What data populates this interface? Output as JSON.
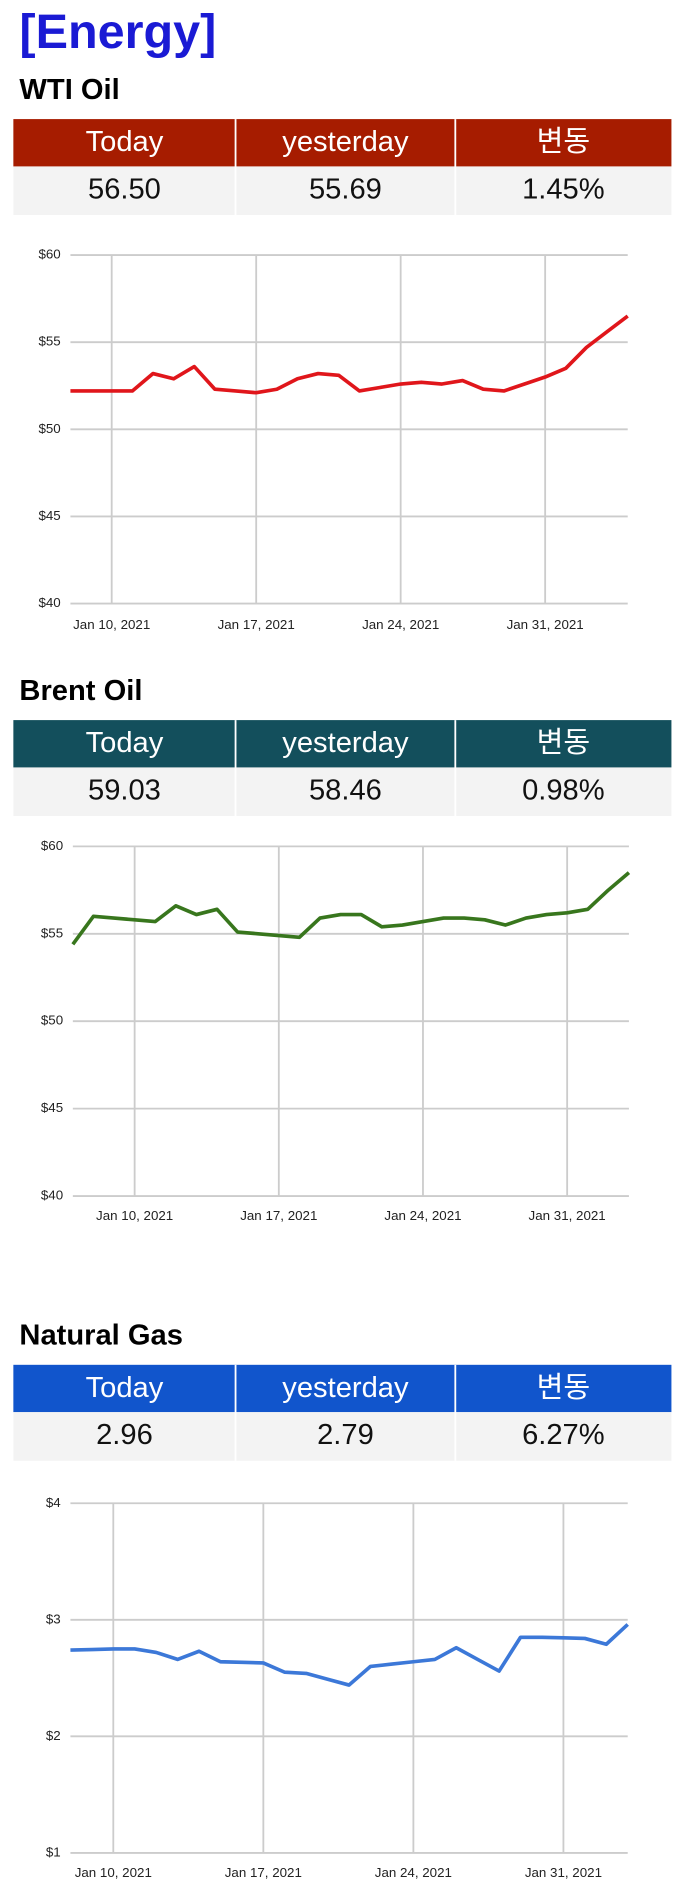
{
  "header": {
    "title": "[Energy]"
  },
  "sections": [
    {
      "title": "WTI Oil",
      "header_color": "#a61c00",
      "table": {
        "header": [
          "Today",
          "yesterday",
          "변동"
        ],
        "rows": [
          [
            "56.50",
            "55.69",
            "1.45%"
          ]
        ]
      }
    },
    {
      "title": "Brent Oil",
      "header_color": "#134f5c",
      "table": {
        "header": [
          "Today",
          "yesterday",
          "변동"
        ],
        "rows": [
          [
            "59.03",
            "58.46",
            "0.98%"
          ]
        ]
      }
    },
    {
      "title": "Natural Gas",
      "header_color": "#1155cc",
      "table": {
        "header": [
          "Today",
          "yesterday",
          "변동"
        ],
        "rows": [
          [
            "2.96",
            "2.79",
            "6.27%"
          ]
        ]
      }
    }
  ],
  "chart_data": [
    {
      "type": "line",
      "color": "#e0161b",
      "x": [
        "2021-01-08",
        "2021-01-09",
        "2021-01-10",
        "2021-01-11",
        "2021-01-12",
        "2021-01-13",
        "2021-01-14",
        "2021-01-15",
        "2021-01-16",
        "2021-01-17",
        "2021-01-18",
        "2021-01-19",
        "2021-01-20",
        "2021-01-21",
        "2021-01-22",
        "2021-01-23",
        "2021-01-24",
        "2021-01-25",
        "2021-01-26",
        "2021-01-27",
        "2021-01-28",
        "2021-01-29",
        "2021-01-30",
        "2021-01-31",
        "2021-02-01",
        "2021-02-02",
        "2021-02-03",
        "2021-02-04"
      ],
      "values": [
        52.2,
        52.2,
        52.2,
        52.2,
        53.2,
        52.9,
        53.6,
        52.3,
        52.2,
        52.1,
        52.3,
        52.9,
        53.2,
        53.1,
        52.2,
        52.4,
        52.6,
        52.7,
        52.6,
        52.8,
        52.3,
        52.2,
        52.6,
        53.0,
        53.5,
        54.7,
        55.6,
        56.5
      ],
      "xlim": [
        "2021-01-08",
        "2021-02-04"
      ],
      "xticks": [
        {
          "value": "2021-01-10",
          "label": "Jan 10, 2021"
        },
        {
          "value": "2021-01-17",
          "label": "Jan 17, 2021"
        },
        {
          "value": "2021-01-24",
          "label": "Jan 24, 2021"
        },
        {
          "value": "2021-01-31",
          "label": "Jan 31, 2021"
        }
      ],
      "ylim": [
        40,
        60
      ],
      "yticks": [
        {
          "value": 40,
          "label": "$40"
        },
        {
          "value": 45,
          "label": "$45"
        },
        {
          "value": 50,
          "label": "$50"
        },
        {
          "value": 55,
          "label": "$55"
        },
        {
          "value": 60,
          "label": "$60"
        }
      ],
      "grid": true
    },
    {
      "type": "line",
      "color": "#38761d",
      "x": [
        "2021-01-07",
        "2021-01-08",
        "2021-01-09",
        "2021-01-10",
        "2021-01-11",
        "2021-01-12",
        "2021-01-13",
        "2021-01-14",
        "2021-01-15",
        "2021-01-16",
        "2021-01-17",
        "2021-01-18",
        "2021-01-19",
        "2021-01-20",
        "2021-01-21",
        "2021-01-22",
        "2021-01-23",
        "2021-01-24",
        "2021-01-25",
        "2021-01-26",
        "2021-01-27",
        "2021-01-28",
        "2021-01-29",
        "2021-01-30",
        "2021-01-31",
        "2021-02-01",
        "2021-02-02",
        "2021-02-03"
      ],
      "values": [
        54.4,
        56.0,
        55.9,
        55.8,
        55.7,
        56.6,
        56.1,
        56.4,
        55.1,
        55.0,
        54.9,
        54.8,
        55.9,
        56.1,
        56.1,
        55.4,
        55.5,
        55.7,
        55.9,
        55.9,
        55.8,
        55.5,
        55.9,
        56.1,
        56.2,
        56.4,
        57.5,
        58.5
      ],
      "xlim": [
        "2021-01-07",
        "2021-02-03"
      ],
      "xticks": [
        {
          "value": "2021-01-10",
          "label": "Jan 10, 2021"
        },
        {
          "value": "2021-01-17",
          "label": "Jan 17, 2021"
        },
        {
          "value": "2021-01-24",
          "label": "Jan 24, 2021"
        },
        {
          "value": "2021-01-31",
          "label": "Jan 31, 2021"
        }
      ],
      "ylim": [
        40,
        60
      ],
      "yticks": [
        {
          "value": 40,
          "label": "$40"
        },
        {
          "value": 45,
          "label": "$45"
        },
        {
          "value": 50,
          "label": "$50"
        },
        {
          "value": 55,
          "label": "$55"
        },
        {
          "value": 60,
          "label": "$60"
        }
      ],
      "grid": true
    },
    {
      "type": "line",
      "color": "#3c78d8",
      "x": [
        "2021-01-08",
        "2021-01-09",
        "2021-01-10",
        "2021-01-11",
        "2021-01-12",
        "2021-01-13",
        "2021-01-14",
        "2021-01-15",
        "2021-01-16",
        "2021-01-17",
        "2021-01-18",
        "2021-01-19",
        "2021-01-20",
        "2021-01-21",
        "2021-01-22",
        "2021-01-23",
        "2021-01-24",
        "2021-01-25",
        "2021-01-26",
        "2021-01-27",
        "2021-01-28",
        "2021-01-29",
        "2021-01-30",
        "2021-01-31",
        "2021-02-01",
        "2021-02-02",
        "2021-02-03"
      ],
      "values": [
        2.74,
        2.745,
        2.75,
        2.75,
        2.72,
        2.66,
        2.73,
        2.64,
        2.635,
        2.63,
        2.55,
        2.54,
        2.49,
        2.44,
        2.6,
        2.62,
        2.64,
        2.66,
        2.76,
        2.66,
        2.56,
        2.85,
        2.85,
        2.845,
        2.84,
        2.79,
        2.96
      ],
      "xlim": [
        "2021-01-08",
        "2021-02-03"
      ],
      "xticks": [
        {
          "value": "2021-01-10",
          "label": "Jan 10, 2021"
        },
        {
          "value": "2021-01-17",
          "label": "Jan 17, 2021"
        },
        {
          "value": "2021-01-24",
          "label": "Jan 24, 2021"
        },
        {
          "value": "2021-01-31",
          "label": "Jan 31, 2021"
        }
      ],
      "ylim": [
        1,
        4
      ],
      "yticks": [
        {
          "value": 1,
          "label": "$1"
        },
        {
          "value": 2,
          "label": "$2"
        },
        {
          "value": 3,
          "label": "$3"
        },
        {
          "value": 4,
          "label": "$4"
        }
      ],
      "grid": true
    }
  ]
}
